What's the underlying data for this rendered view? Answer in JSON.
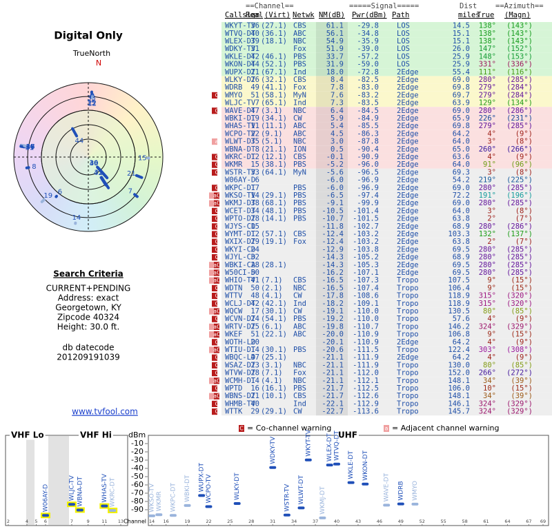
{
  "header": {
    "title": "Digital Only",
    "north_label": "TrueNorth",
    "north_mark": "N"
  },
  "search_criteria": {
    "title": "Search Criteria",
    "lines": [
      "CURRENT+PENDING",
      "Address: exact",
      "Georgetown, KY",
      "Zipcode 40324",
      "Height: 30.0 ft."
    ],
    "datecode_label": "db datecode",
    "datecode": "201209191039",
    "link": "www.tvfool.com"
  },
  "table": {
    "group_headers": [
      "==Channel==",
      "=====Signal=====",
      "Dist",
      "==Azimuth=="
    ],
    "columns": [
      "Callsign",
      "Real",
      "(Virt)",
      "Netwk",
      "NM(dB)",
      "Pwr(dBm)",
      "Path",
      "miles",
      "True",
      "(Magn)"
    ],
    "rows": [
      [
        null,
        "WKYT-TV",
        "36",
        "(27.1)",
        "CBS",
        "61.1",
        "-29.8",
        "LOS",
        "14.5",
        "138°",
        "(143°)"
      ],
      [
        null,
        "WTVQ-DT",
        "40",
        "(36.1)",
        "ABC",
        "56.1",
        "-34.8",
        "LOS",
        "15.1",
        "138°",
        "(143°)"
      ],
      [
        null,
        "WLEX-DT",
        "39",
        "(18.1)",
        "NBC",
        "54.9",
        "-35.9",
        "LOS",
        "15.1",
        "138°",
        "(143°)"
      ],
      [
        null,
        "WDKY-TV",
        "31",
        null,
        "Fox",
        "51.9",
        "-39.0",
        "LOS",
        "26.0",
        "147°",
        "(152°)"
      ],
      [
        null,
        "WKLE-DT",
        "42",
        "(46.1)",
        "PBS",
        "33.7",
        "-57.2",
        "LOS",
        "25.9",
        "148°",
        "(153°)"
      ],
      [
        null,
        "WKON-DT",
        "44",
        "(52.1)",
        "PBS",
        "31.9",
        "-59.0",
        "LOS",
        "25.9",
        "331°",
        "(336°)"
      ],
      [
        null,
        "WUPX-DT",
        "21",
        "(67.1)",
        "Ind",
        "18.0",
        "-72.8",
        "2Edge",
        "55.4",
        "111°",
        "(116°)"
      ],
      [
        null,
        "WLKY-DT",
        "26",
        "(32.1)",
        "CBS",
        "8.4",
        "-82.5",
        "2Edge",
        "69.0",
        "280°",
        "(285°)"
      ],
      [
        null,
        "WDRB",
        "49",
        "(41.1)",
        "Fox",
        "7.8",
        "-83.0",
        "2Edge",
        "69.8",
        "279°",
        "(284°)"
      ],
      [
        "C",
        "WMYO",
        "51",
        "(58.1)",
        "MyN",
        "7.6",
        "-83.2",
        "2Edge",
        "69.7",
        "279°",
        "(284°)"
      ],
      [
        null,
        "WLJC-TV",
        "7",
        "(65.1)",
        "Ind",
        "7.3",
        "-83.5",
        "2Edge",
        "63.9",
        "129°",
        "(134°)"
      ],
      [
        "C",
        "WAVE-DT",
        "47",
        "(3.1)",
        "NBC",
        "6.4",
        "-84.5",
        "2Edge",
        "69.0",
        "280°",
        "(286°)"
      ],
      [
        null,
        "WBKI-DT",
        "19",
        "(34.1)",
        "CW",
        "5.9",
        "-84.9",
        "2Edge",
        "65.9",
        "226°",
        "(231°)"
      ],
      [
        null,
        "WHAS-TV",
        "11",
        "(11.1)",
        "ABC",
        "5.4",
        "-85.5",
        "2Edge",
        "69.8",
        "279°",
        "(285°)"
      ],
      [
        null,
        "WCPO-TV",
        "22",
        "(9.1)",
        "ABC",
        "4.5",
        "-86.3",
        "2Edge",
        "64.2",
        "4°",
        "(9°)"
      ],
      [
        "a",
        "WLWT-DT",
        "35",
        "(5.1)",
        "NBC",
        "3.0",
        "-87.8",
        "2Edge",
        "64.0",
        "3°",
        "(8°)"
      ],
      [
        null,
        "WBNA-DT",
        "8",
        "(21.1)",
        "ION",
        "0.5",
        "-90.4",
        "2Edge",
        "65.0",
        "260°",
        "(266°)"
      ],
      [
        "C",
        "WKRC-DT",
        "12",
        "(12.1)",
        "CBS",
        "-0.1",
        "-90.9",
        "2Edge",
        "63.6",
        "4°",
        "(9°)"
      ],
      [
        "C",
        "WKMR",
        "15",
        "(38.1)",
        "PBS",
        "-5.2",
        "-96.0",
        "2Edge",
        "64.0",
        "91°",
        "(96°)"
      ],
      [
        "C",
        "WSTR-TV",
        "33",
        "(64.1)",
        "MyN",
        "-5.6",
        "-96.5",
        "2Edge",
        "69.3",
        "3°",
        "(8°)"
      ],
      [
        null,
        "W06AY-D",
        "6",
        null,
        null,
        "-6.0",
        "-96.9",
        "2Edge",
        "54.2",
        "219°",
        "(225°)"
      ],
      [
        "C",
        "WKPC-DT",
        "17",
        null,
        "PBS",
        "-6.0",
        "-96.9",
        "2Edge",
        "69.0",
        "280°",
        "(285°)"
      ],
      [
        "aC",
        "WKSO-TV",
        "14",
        "(29.1)",
        "PBS",
        "-6.5",
        "-97.4",
        "2Edge",
        "72.2",
        "191°",
        "(196°)"
      ],
      [
        "aC",
        "WKMJ-DT",
        "38",
        "(68.1)",
        "PBS",
        "-9.1",
        "-99.9",
        "2Edge",
        "69.0",
        "280°",
        "(285°)"
      ],
      [
        "C",
        "WCET-DT",
        "34",
        "(48.1)",
        "PBS",
        "-10.5",
        "-101.4",
        "2Edge",
        "64.0",
        "3°",
        "(8°)"
      ],
      [
        "C",
        "WPTO-DT",
        "28",
        "(14.1)",
        "PBS",
        "-10.7",
        "-101.5",
        "2Edge",
        "63.8",
        "2°",
        "(7°)"
      ],
      [
        "C",
        "WJYS-CD",
        "15",
        null,
        null,
        "-11.8",
        "-102.7",
        "2Edge",
        "68.9",
        "280°",
        "(286°)"
      ],
      [
        "C",
        "WYMT-DT",
        "12",
        "(57.1)",
        "CBS",
        "-12.4",
        "-103.2",
        "2Edge",
        "103.3",
        "132°",
        "(137°)"
      ],
      [
        "C",
        "WXIX-DT",
        "29",
        "(19.1)",
        "Fox",
        "-12.4",
        "-103.2",
        "2Edge",
        "63.8",
        "2°",
        "(7°)"
      ],
      [
        "C",
        "WKYI-CD",
        "24",
        null,
        null,
        "-12.9",
        "-103.8",
        "2Edge",
        "69.5",
        "280°",
        "(285°)"
      ],
      [
        "C",
        "WJYL-CD",
        "32",
        null,
        null,
        "-14.3",
        "-105.2",
        "2Edge",
        "68.9",
        "280°",
        "(285°)"
      ],
      [
        "aC",
        "WBKI-CA",
        "28",
        "(28.1)",
        null,
        "-14.3",
        "-105.3",
        "2Edge",
        "69.5",
        "280°",
        "(285°)"
      ],
      [
        "aC",
        "W50CI-D",
        "50",
        null,
        null,
        "-16.2",
        "-107.1",
        "2Edge",
        "69.5",
        "280°",
        "(285°)"
      ],
      [
        "aC",
        "WHIO-TV",
        "41",
        "(7.1)",
        "CBS",
        "-16.5",
        "-107.3",
        "Tropo",
        "107.5",
        "9°",
        "(15°)"
      ],
      [
        "C",
        "WDTN",
        "50",
        "(2.1)",
        "NBC",
        "-16.5",
        "-107.4",
        "Tropo",
        "106.4",
        "9°",
        "(15°)"
      ],
      [
        "C",
        "WTTV",
        "48",
        "(4.1)",
        "CW",
        "-17.8",
        "-108.6",
        "Tropo",
        "118.9",
        "315°",
        "(320°)"
      ],
      [
        "C",
        "WCLJ-DT",
        "42",
        "(42.1)",
        "Ind",
        "-18.2",
        "-109.1",
        "Tropo",
        "118.9",
        "315°",
        "(320°)"
      ],
      [
        "aC",
        "WQCW",
        "17",
        "(30.1)",
        "CW",
        "-19.1",
        "-110.0",
        "Tropo",
        "130.5",
        "80°",
        "(85°)"
      ],
      [
        "C",
        "WCVN-DT",
        "24",
        "(54.1)",
        "PBS",
        "-19.2",
        "-110.0",
        "Tropo",
        "57.6",
        "4°",
        "(9°)"
      ],
      [
        "aC",
        "WRTV-DT",
        "25",
        "(6.1)",
        "ABC",
        "-19.8",
        "-110.7",
        "Tropo",
        "146.2",
        "324°",
        "(329°)"
      ],
      [
        "aC",
        "WKEF",
        "51",
        "(22.1)",
        "ABC",
        "-20.0",
        "-110.9",
        "Tropo",
        "106.8",
        "9°",
        "(15°)"
      ],
      [
        "C",
        "WOTH-LD",
        "20",
        null,
        null,
        "-20.1",
        "-110.9",
        "2Edge",
        "64.2",
        "4°",
        "(9°)"
      ],
      [
        "aC",
        "WTIU-DT",
        "14",
        "(30.1)",
        "PBS",
        "-20.6",
        "-111.5",
        "Tropo",
        "122.4",
        "303°",
        "(308°)"
      ],
      [
        "C",
        "WBQC-LD",
        "47",
        "(25.1)",
        null,
        "-21.1",
        "-111.9",
        "2Edge",
        "64.2",
        "4°",
        "(9°)"
      ],
      [
        "C",
        "WSAZ-DT",
        "23",
        "(3.1)",
        "NBC",
        "-21.1",
        "-111.9",
        "Tropo",
        "130.0",
        "80°",
        "(85°)"
      ],
      [
        "C",
        "WTVW-DT",
        "28",
        "(7.1)",
        "Fox",
        "-21.1",
        "-112.0",
        "Tropo",
        "152.0",
        "266°",
        "(272°)"
      ],
      [
        "aC",
        "WCMH-DT",
        "14",
        "(4.1)",
        "NBC",
        "-21.1",
        "-112.1",
        "Tropo",
        "148.1",
        "34°",
        "(39°)"
      ],
      [
        "C",
        "WPTD",
        "16",
        "(16.1)",
        "PBS",
        "-21.7",
        "-112.5",
        "Tropo",
        "106.0",
        "10°",
        "(15°)"
      ],
      [
        "aC",
        "WBNS-DT",
        "21",
        "(10.1)",
        "CBS",
        "-21.7",
        "-112.6",
        "Tropo",
        "148.1",
        "34°",
        "(39°)"
      ],
      [
        "C",
        "WHMB-TV",
        "40",
        null,
        "Ind",
        "-22.1",
        "-112.9",
        "Tropo",
        "146.1",
        "324°",
        "(329°)"
      ],
      [
        "C",
        "WTTK",
        "29",
        "(29.1)",
        "CW",
        "-22.7",
        "-113.6",
        "Tropo",
        "145.7",
        "324°",
        "(329°)"
      ]
    ],
    "row_colors": [
      "#d6f5d6",
      "#d6f5d6",
      "#d6f5d6",
      "#d6f5d6",
      "#d6f5d6",
      "#d6f5d6",
      "#d6f5d6",
      "#fbf8cc",
      "#fbf8cc",
      "#fbf8cc",
      "#fbf8cc",
      "#fbe0e0",
      "#fbe0e0",
      "#fbe0e0",
      "#fbe0e0",
      "#fbe0e0",
      "#fbe0e0",
      "#fbe0e0",
      "#fbe0e0",
      "#eeeeee",
      "#eeeeee",
      "#eeeeee",
      "#eeeeee",
      "#eeeeee",
      "#eeeeee",
      "#eeeeee",
      "#eeeeee",
      "#eeeeee",
      "#eeeeee",
      "#eeeeee",
      "#eeeeee",
      "#eeeeee",
      "#eeeeee",
      "#eeeeee",
      "#eeeeee",
      "#eeeeee",
      "#eeeeee",
      "#eeeeee",
      "#eeeeee",
      "#eeeeee",
      "#eeeeee",
      "#eeeeee",
      "#eeeeee",
      "#eeeeee",
      "#eeeeee",
      "#eeeeee",
      "#eeeeee",
      "#eeeeee",
      "#eeeeee",
      "#eeeeee",
      "#eeeeee"
    ]
  },
  "chart_data": {
    "type": "scatter",
    "y_label": "dBm",
    "x_label": "Channel",
    "ylim": [
      -100,
      0
    ],
    "yticks": [
      -10,
      -20,
      -30,
      -40,
      -50,
      -60,
      -70,
      -80,
      -90
    ],
    "legend": {
      "cochannel_symbol": "C",
      "cochannel_text": "= Co-channel warning",
      "adjacent_symbol": "a",
      "adjacent_text": "= Adjacent channel warning"
    },
    "panels": [
      {
        "title": "VHF Lo",
        "xlim": [
          2,
          6
        ],
        "xticks": [
          2,
          4,
          5,
          6
        ],
        "outline": "#f2f000"
      },
      {
        "title": "VHF Hi",
        "xlim": [
          7,
          13
        ],
        "xticks": [
          7,
          9,
          11,
          13
        ],
        "outline": "#f2f000"
      },
      {
        "title": "UHF",
        "xlim": [
          14,
          69
        ],
        "xticks": [
          14,
          16,
          19,
          22,
          25,
          28,
          31,
          34,
          37,
          40,
          43,
          46,
          49,
          52,
          55,
          58,
          61,
          64,
          67,
          69
        ]
      }
    ],
    "labels": [
      "WKYT-TV",
      "WTVQ-DT",
      "WLEX-DT",
      "WDKY-TV",
      "WKLE-DT",
      "WKON-DT",
      "WUPX-DT",
      "WLKY-DT",
      "WDRB",
      "WMYO",
      "WLJC-TV",
      "WAVE-DT",
      "WBKI-DT",
      "WHAS-TV",
      "WCPO-TV",
      "WLWT-DT",
      "WBNA-DT",
      "WKRC-DT",
      "WKMR",
      "WSTR-TV",
      "W06AY-D",
      "WKPC-DT",
      "WKSO-TV",
      "WKMJ-DT"
    ],
    "x": [
      36,
      40,
      39,
      31,
      42,
      44,
      21,
      26,
      49,
      51,
      7,
      47,
      19,
      11,
      22,
      35,
      8,
      12,
      15,
      33,
      6,
      17,
      14,
      38
    ],
    "values": [
      -29.8,
      -34.8,
      -35.9,
      -39.0,
      -57.2,
      -59.0,
      -72.8,
      -82.5,
      -83.0,
      -83.2,
      -83.5,
      -84.5,
      -84.9,
      -85.5,
      -86.3,
      -87.8,
      -90.4,
      -90.9,
      -96.0,
      -96.5,
      -96.9,
      -96.9,
      -97.4,
      -99.9
    ],
    "colors": [
      "#1f4fb8",
      "#1f4fb8",
      "#1f4fb8",
      "#1f4fb8",
      "#1f4fb8",
      "#1f4fb8",
      "#1f4fb8",
      "#1f4fb8",
      "#1f4fb8",
      "#9ab4dc",
      "#1f4fb8",
      "#9ab4dc",
      "#9ab4dc",
      "#1f4fb8",
      "#1f4fb8",
      "#1f4fb8",
      "#1f4fb8",
      "#9ab4dc",
      "#9ab4dc",
      "#1f4fb8",
      "#1f4fb8",
      "#9ab4dc",
      "#9ab4dc",
      "#9ab4dc"
    ]
  }
}
